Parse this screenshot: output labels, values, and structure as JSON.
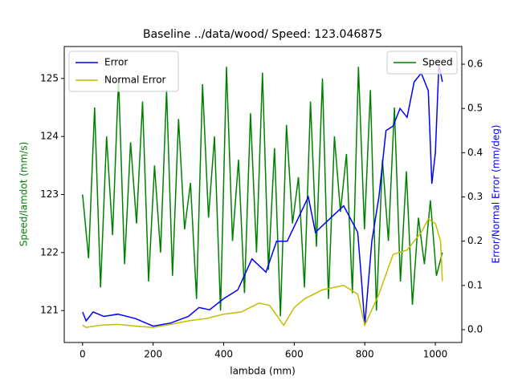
{
  "chart_data": {
    "type": "line",
    "title": "Baseline ../data/wood/ Speed: 123.046875",
    "xlabel": "lambda (mm)",
    "ylabel": "Speed/lamdot (mm/s)",
    "y2label": "Error/Normal Error (mm/deg)",
    "ylabel_color": "green",
    "y2label_color": "blue",
    "xlim": [
      -52,
      1075
    ],
    "xticks": [
      0,
      200,
      400,
      600,
      800,
      1000
    ],
    "ylim": [
      120.45,
      125.55
    ],
    "yticks": [
      121,
      122,
      123,
      124,
      125
    ],
    "y2lim": [
      -0.029,
      0.64
    ],
    "y2ticks": [
      {
        "value": 0,
        "label": "0.0"
      },
      0.1,
      0.2,
      0.3,
      0.4,
      0.5,
      0.6
    ],
    "legend": "upper right",
    "legend2": "upper left",
    "series": [
      {
        "name": "Speed",
        "color": "green",
        "axis": "y",
        "x": [
          0,
          17,
          34,
          51,
          68,
          85,
          102,
          119,
          136,
          153,
          170,
          187,
          204,
          221,
          238,
          255,
          272,
          289,
          306,
          323,
          340,
          357,
          374,
          391,
          408,
          425,
          442,
          459,
          476,
          493,
          510,
          527,
          544,
          561,
          578,
          595,
          612,
          629,
          646,
          663,
          680,
          697,
          714,
          731,
          748,
          765,
          782,
          799,
          816,
          833,
          850,
          867,
          884,
          901,
          918,
          935,
          952,
          969,
          986,
          1003,
          1020
        ],
        "values": [
          123.0,
          121.9,
          124.5,
          121.4,
          124.0,
          122.3,
          125.0,
          121.8,
          123.9,
          122.5,
          124.6,
          121.5,
          123.5,
          122.0,
          124.8,
          121.6,
          124.3,
          122.4,
          123.2,
          121.2,
          124.9,
          122.6,
          124.0,
          121.0,
          125.2,
          122.2,
          123.6,
          121.3,
          124.4,
          122.0,
          125.1,
          121.7,
          123.8,
          120.9,
          124.2,
          122.5,
          123.3,
          121.4,
          124.6,
          122.1,
          125.0,
          121.2,
          124.0,
          122.7,
          123.7,
          121.3,
          125.2,
          122.4,
          124.8,
          121.0,
          123.6,
          122.2,
          124.5,
          121.5,
          123.4,
          121.1,
          122.6,
          121.8,
          122.9,
          121.6,
          122.0
        ]
      },
      {
        "name": "Error",
        "color": "#0000ff",
        "axis": "y2",
        "x": [
          0,
          10,
          30,
          60,
          100,
          150,
          200,
          250,
          300,
          330,
          360,
          400,
          440,
          480,
          520,
          550,
          580,
          610,
          640,
          660,
          700,
          740,
          780,
          790,
          800,
          820,
          840,
          860,
          880,
          900,
          920,
          940,
          960,
          980,
          990,
          1000,
          1010,
          1020
        ],
        "values": [
          0.04,
          0.02,
          0.04,
          0.03,
          0.035,
          0.025,
          0.008,
          0.015,
          0.03,
          0.05,
          0.045,
          0.07,
          0.09,
          0.16,
          0.13,
          0.2,
          0.2,
          0.25,
          0.3,
          0.22,
          0.25,
          0.28,
          0.22,
          0.12,
          0.01,
          0.2,
          0.3,
          0.45,
          0.46,
          0.5,
          0.48,
          0.56,
          0.58,
          0.54,
          0.33,
          0.4,
          0.6,
          0.56
        ]
      },
      {
        "name": "Normal Error",
        "color": "#bfbf00",
        "axis": "y2",
        "x": [
          0,
          10,
          50,
          100,
          150,
          200,
          250,
          300,
          350,
          400,
          450,
          500,
          530,
          570,
          600,
          630,
          680,
          740,
          780,
          800,
          840,
          880,
          920,
          960,
          980,
          1000,
          1015,
          1020
        ],
        "values": [
          0.01,
          0.005,
          0.01,
          0.012,
          0.008,
          0.005,
          0.012,
          0.02,
          0.025,
          0.035,
          0.04,
          0.06,
          0.055,
          0.01,
          0.05,
          0.07,
          0.09,
          0.1,
          0.08,
          0.01,
          0.08,
          0.17,
          0.18,
          0.22,
          0.25,
          0.24,
          0.2,
          0.11
        ]
      }
    ]
  }
}
